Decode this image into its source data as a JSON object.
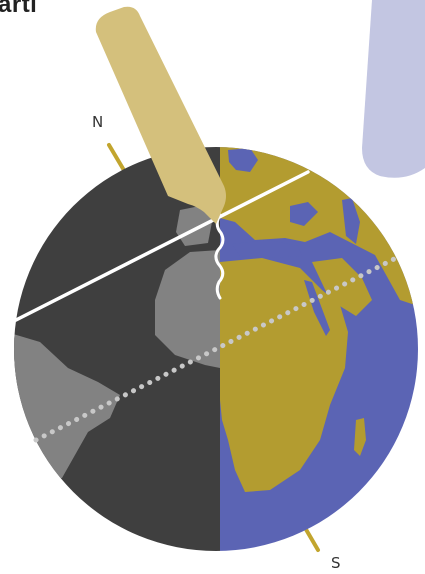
{
  "title": "arti",
  "labels": {
    "north": "N",
    "south": "S"
  },
  "colors": {
    "night": "#3f3f3f",
    "night_land": "#828282",
    "ocean": "#5b64b4",
    "day_land": "#b39c30",
    "pencil": "#d4c07c",
    "blob": "#c3c6e2",
    "axis": "#c2a52e",
    "line": "#ffffff",
    "dotted": "#c8c8c8"
  },
  "icons": {
    "pencil": "pencil-icon",
    "globe": "globe-icon"
  }
}
